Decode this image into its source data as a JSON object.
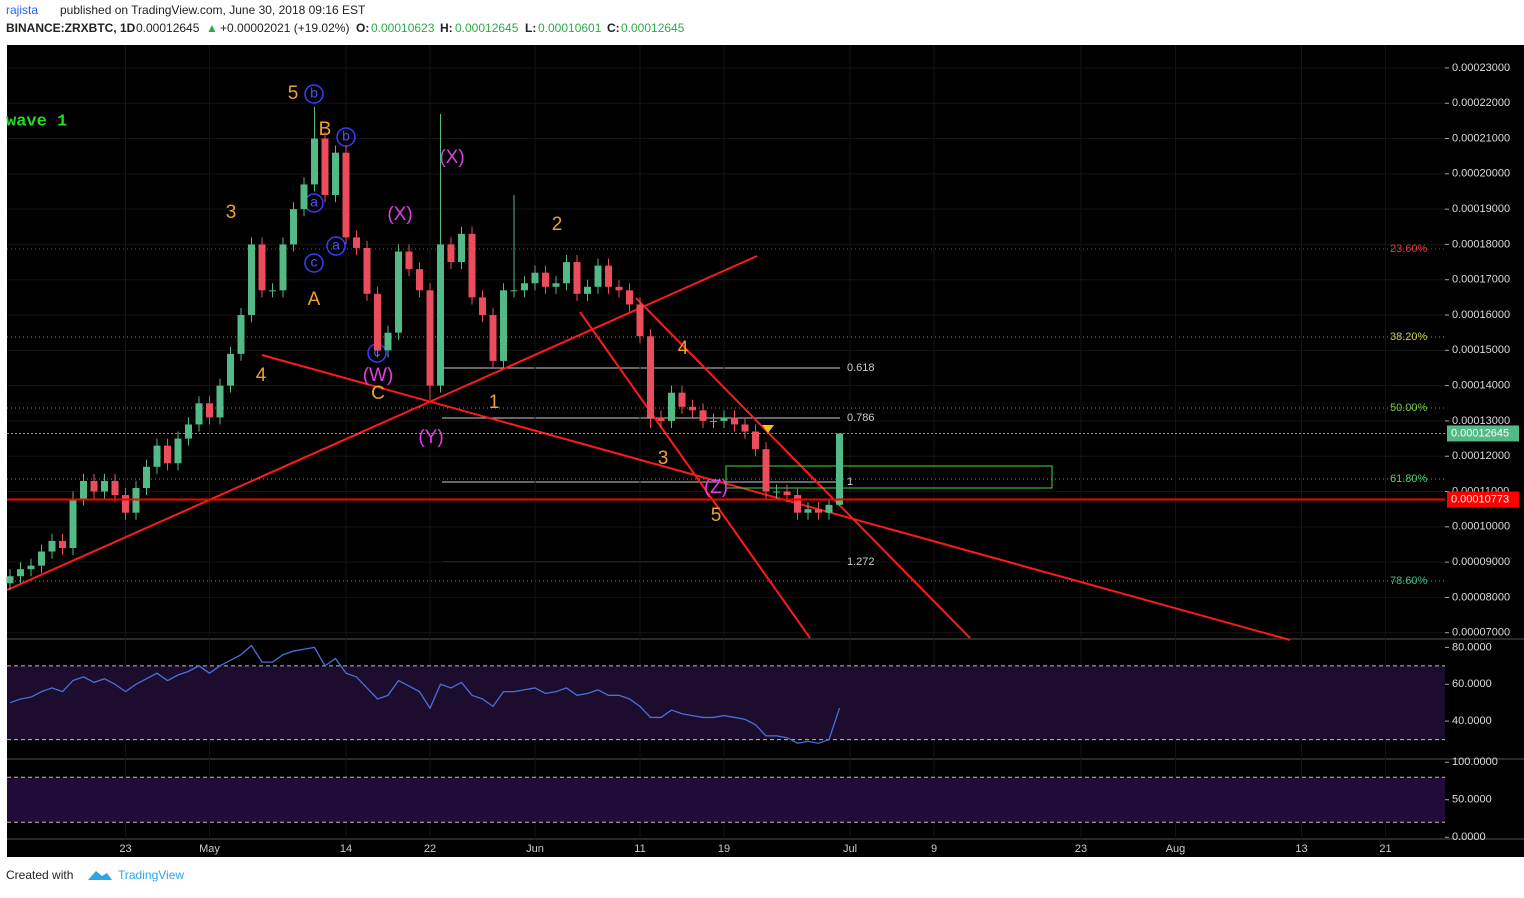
{
  "header": {
    "author": "rajista",
    "published": "published on TradingView.com, June 30, 2018 09:16 EST",
    "symbol": "BINANCE:ZRXBTC, 1D",
    "last": "0.00012645",
    "arrow": "▲",
    "change": "+0.00002021 (+19.02%)",
    "o_label": "O:",
    "o": "0.00010623",
    "h_label": "H:",
    "h": "0.00012645",
    "l_label": "L:",
    "l": "0.00010601",
    "c_label": "C:",
    "c": "0.00012645"
  },
  "footer": {
    "created": "Created with",
    "brand": "TradingView"
  },
  "annotations": [
    "wave 1",
    "5",
    "B",
    "3",
    "A",
    "4",
    "C",
    "1",
    "2",
    "4",
    "3",
    "5",
    "b",
    "b",
    "a",
    "a",
    "c",
    "c",
    "(X)",
    "(X)",
    "(W)",
    "(Y)",
    "(Z)"
  ],
  "fib_retracement": [
    "23.60%",
    "38.20%",
    "50.00%",
    "61.80%",
    "78.60%"
  ],
  "fib_extension": [
    "0.618",
    "0.786",
    "1",
    "1.272"
  ],
  "chart_data": {
    "type": "candlestick",
    "opens": [
      8.4e-05,
      8.6e-05,
      8.8e-05,
      8.9e-05,
      9.3e-05,
      9.6e-05,
      9.4e-05,
      0.000108,
      0.000113,
      0.00011,
      0.000113,
      0.000109,
      0.000104,
      0.000111,
      0.000117,
      0.000123,
      0.000118,
      0.000125,
      0.000129,
      0.000135,
      0.000131,
      0.00014,
      0.000149,
      0.00016,
      0.00018,
      0.000167,
      0.000167,
      0.00018,
      0.00019,
      0.000197,
      0.00021,
      0.000194,
      0.000206,
      0.000182,
      0.000179,
      0.000166,
      0.00015,
      0.000155,
      0.000178,
      0.000173,
      0.000167,
      0.00014,
      0.00018,
      0.000175,
      0.000183,
      0.000165,
      0.00016,
      0.000147,
      0.000167,
      0.000167,
      0.000169,
      0.000172,
      0.000168,
      0.000169,
      0.000175,
      0.000166,
      0.000168,
      0.000174,
      0.000168,
      0.000167,
      0.000163,
      0.000154,
      0.000131,
      0.00013,
      0.000138,
      0.000134,
      0.000133,
      0.00013,
      0.00013,
      0.000131,
      0.000129,
      0.000127,
      0.000122,
      0.00011,
      0.00011,
      0.000109,
      0.000104,
      0.000105,
      0.000104,
      0.00010623
    ],
    "highs": [
      8.8e-05,
      9e-05,
      9.1e-05,
      9.5e-05,
      9.8e-05,
      9.8e-05,
      0.00011,
      0.000115,
      0.000115,
      0.000115,
      0.000115,
      0.000111,
      0.000113,
      0.000119,
      0.000125,
      0.000125,
      0.000127,
      0.000131,
      0.000137,
      0.000137,
      0.000142,
      0.000151,
      0.000162,
      0.000182,
      0.000182,
      0.000169,
      0.000182,
      0.000192,
      0.000199,
      0.000219,
      0.000212,
      0.000208,
      0.000208,
      0.000184,
      0.000181,
      0.000168,
      0.000157,
      0.00018,
      0.00018,
      0.000175,
      0.000169,
      0.000217,
      0.000182,
      0.000185,
      0.000185,
      0.000167,
      0.000162,
      0.000169,
      0.000194,
      0.000171,
      0.000174,
      0.000174,
      0.000171,
      0.000177,
      0.000177,
      0.00017,
      0.000176,
      0.000176,
      0.00017,
      0.000169,
      0.000165,
      0.000156,
      0.000133,
      0.00014,
      0.00014,
      0.000136,
      0.000135,
      0.000132,
      0.000133,
      0.000133,
      0.000131,
      0.000129,
      0.000124,
      0.000112,
      0.000112,
      0.000111,
      0.000107,
      0.000107,
      0.000108,
      0.00012645
    ],
    "lows": [
      8.2e-05,
      8.4e-05,
      8.6e-05,
      8.7e-05,
      9.1e-05,
      9.2e-05,
      9.2e-05,
      0.000106,
      0.000108,
      0.000108,
      0.000107,
      0.000102,
      0.000102,
      0.000109,
      0.000115,
      0.000116,
      0.000116,
      0.000123,
      0.000127,
      0.000129,
      0.000129,
      0.000138,
      0.000147,
      0.000158,
      0.000165,
      0.000165,
      0.000165,
      0.000178,
      0.000188,
      0.000195,
      0.000192,
      0.000192,
      0.00018,
      0.000177,
      0.000164,
      0.000148,
      0.000148,
      0.000153,
      0.000171,
      0.000165,
      0.000136,
      0.000138,
      0.000173,
      0.000173,
      0.000163,
      0.000158,
      0.000145,
      0.000145,
      0.000165,
      0.000165,
      0.000167,
      0.000166,
      0.000166,
      0.000167,
      0.000164,
      0.000164,
      0.000166,
      0.000166,
      0.000165,
      0.000161,
      0.000152,
      0.000128,
      0.000128,
      0.000128,
      0.000132,
      0.000131,
      0.000128,
      0.000128,
      0.000128,
      0.000127,
      0.000125,
      0.00012,
      0.000108,
      0.000108,
      0.000107,
      0.000102,
      0.000102,
      0.000102,
      0.000102,
      0.00010601
    ],
    "closes": [
      8.6e-05,
      8.8e-05,
      8.9e-05,
      9.3e-05,
      9.6e-05,
      9.4e-05,
      0.000108,
      0.000113,
      0.00011,
      0.000113,
      0.000109,
      0.000104,
      0.000111,
      0.000117,
      0.000123,
      0.000118,
      0.000125,
      0.000129,
      0.000135,
      0.000131,
      0.00014,
      0.000149,
      0.00016,
      0.00018,
      0.000167,
      0.000167,
      0.00018,
      0.00019,
      0.000197,
      0.00021,
      0.000194,
      0.000206,
      0.000182,
      0.000179,
      0.000166,
      0.00015,
      0.000155,
      0.000178,
      0.000173,
      0.000167,
      0.00014,
      0.00018,
      0.000175,
      0.000183,
      0.000165,
      0.00016,
      0.000147,
      0.000167,
      0.000167,
      0.000169,
      0.000172,
      0.000168,
      0.000169,
      0.000175,
      0.000166,
      0.000168,
      0.000174,
      0.000168,
      0.000167,
      0.000163,
      0.000154,
      0.000131,
      0.00013,
      0.000138,
      0.000134,
      0.000133,
      0.00013,
      0.00013,
      0.000131,
      0.000129,
      0.000127,
      0.000122,
      0.00011,
      0.00011,
      0.000109,
      0.000104,
      0.000105,
      0.000104,
      0.00010623,
      0.00012645
    ],
    "up_color": "#53b987",
    "down_color": "#eb4d5c",
    "ylim": [
      6.85e-05,
      0.0002365
    ],
    "yticks": [
      {
        "value": 0.00023,
        "label": "0.00023000"
      },
      {
        "value": 0.00022,
        "label": "0.00022000"
      },
      {
        "value": 0.00021,
        "label": "0.00021000"
      },
      {
        "value": 0.0002,
        "label": "0.00020000"
      },
      {
        "value": 0.00019,
        "label": "0.00019000"
      },
      {
        "value": 0.00018,
        "label": "0.00018000"
      },
      {
        "value": 0.00017,
        "label": "0.00017000"
      },
      {
        "value": 0.00016,
        "label": "0.00016000"
      },
      {
        "value": 0.00015,
        "label": "0.00015000"
      },
      {
        "value": 0.00014,
        "label": "0.00014000"
      },
      {
        "value": 0.00013,
        "label": "0.00013000"
      },
      {
        "value": 0.00012,
        "label": "0.00012000"
      },
      {
        "value": 0.00011,
        "label": "0.00011000"
      },
      {
        "value": 0.0001,
        "label": "0.00010000"
      },
      {
        "value": 9e-05,
        "label": "0.00009000"
      },
      {
        "value": 8e-05,
        "label": "0.00008000"
      },
      {
        "value": 7e-05,
        "label": "0.00007000"
      }
    ],
    "xticks": [
      {
        "value": 11,
        "label": "23"
      },
      {
        "value": 19,
        "label": "May"
      },
      {
        "value": 32,
        "label": "14"
      },
      {
        "value": 40,
        "label": "22"
      },
      {
        "value": 50,
        "label": "Jun"
      },
      {
        "value": 60,
        "label": "11"
      },
      {
        "value": 68,
        "label": "19"
      },
      {
        "value": 80,
        "label": "Jul"
      },
      {
        "value": 88,
        "label": "9"
      },
      {
        "value": 102,
        "label": "23"
      },
      {
        "value": 111,
        "label": "Aug"
      },
      {
        "value": 123,
        "label": "13"
      },
      {
        "value": 131,
        "label": "21"
      }
    ],
    "price_tags": [
      {
        "value": 0.00012645,
        "label": "0.00012645",
        "color": "#53b987"
      },
      {
        "value": 0.00010773,
        "label": "0.00010773",
        "color": "#ff0000"
      }
    ],
    "rsi": {
      "values": [
        50,
        52,
        53,
        56,
        58,
        56,
        62,
        64,
        61,
        63,
        60,
        56,
        60,
        63,
        66,
        62,
        65,
        67,
        70,
        66,
        70,
        73,
        76,
        81,
        72,
        72,
        76,
        78,
        79,
        80,
        70,
        74,
        66,
        64,
        58,
        52,
        54,
        62,
        59,
        56,
        47,
        60,
        58,
        61,
        54,
        52,
        48,
        56,
        56,
        57,
        58,
        55,
        56,
        58,
        54,
        55,
        57,
        54,
        54,
        52,
        48,
        42,
        42,
        46,
        44,
        43,
        42,
        42,
        43,
        42,
        41,
        38,
        32,
        32,
        31,
        28,
        29,
        28,
        30,
        47
      ],
      "color": "#4a6fd8",
      "ylim": [
        20,
        84
      ],
      "yticks": [
        {
          "value": 80,
          "label": "80.0000"
        },
        {
          "value": 60,
          "label": "60.0000"
        },
        {
          "value": 40,
          "label": "40.0000"
        }
      ],
      "bands": [
        70,
        30
      ]
    },
    "stoch": {
      "ylim": [
        -1,
        103
      ],
      "yticks": [
        {
          "value": 100,
          "label": "100.0000"
        },
        {
          "value": 50,
          "label": "50.0000"
        },
        {
          "value": 0,
          "label": "0.0000"
        }
      ],
      "bands": [
        80,
        20
      ]
    }
  }
}
